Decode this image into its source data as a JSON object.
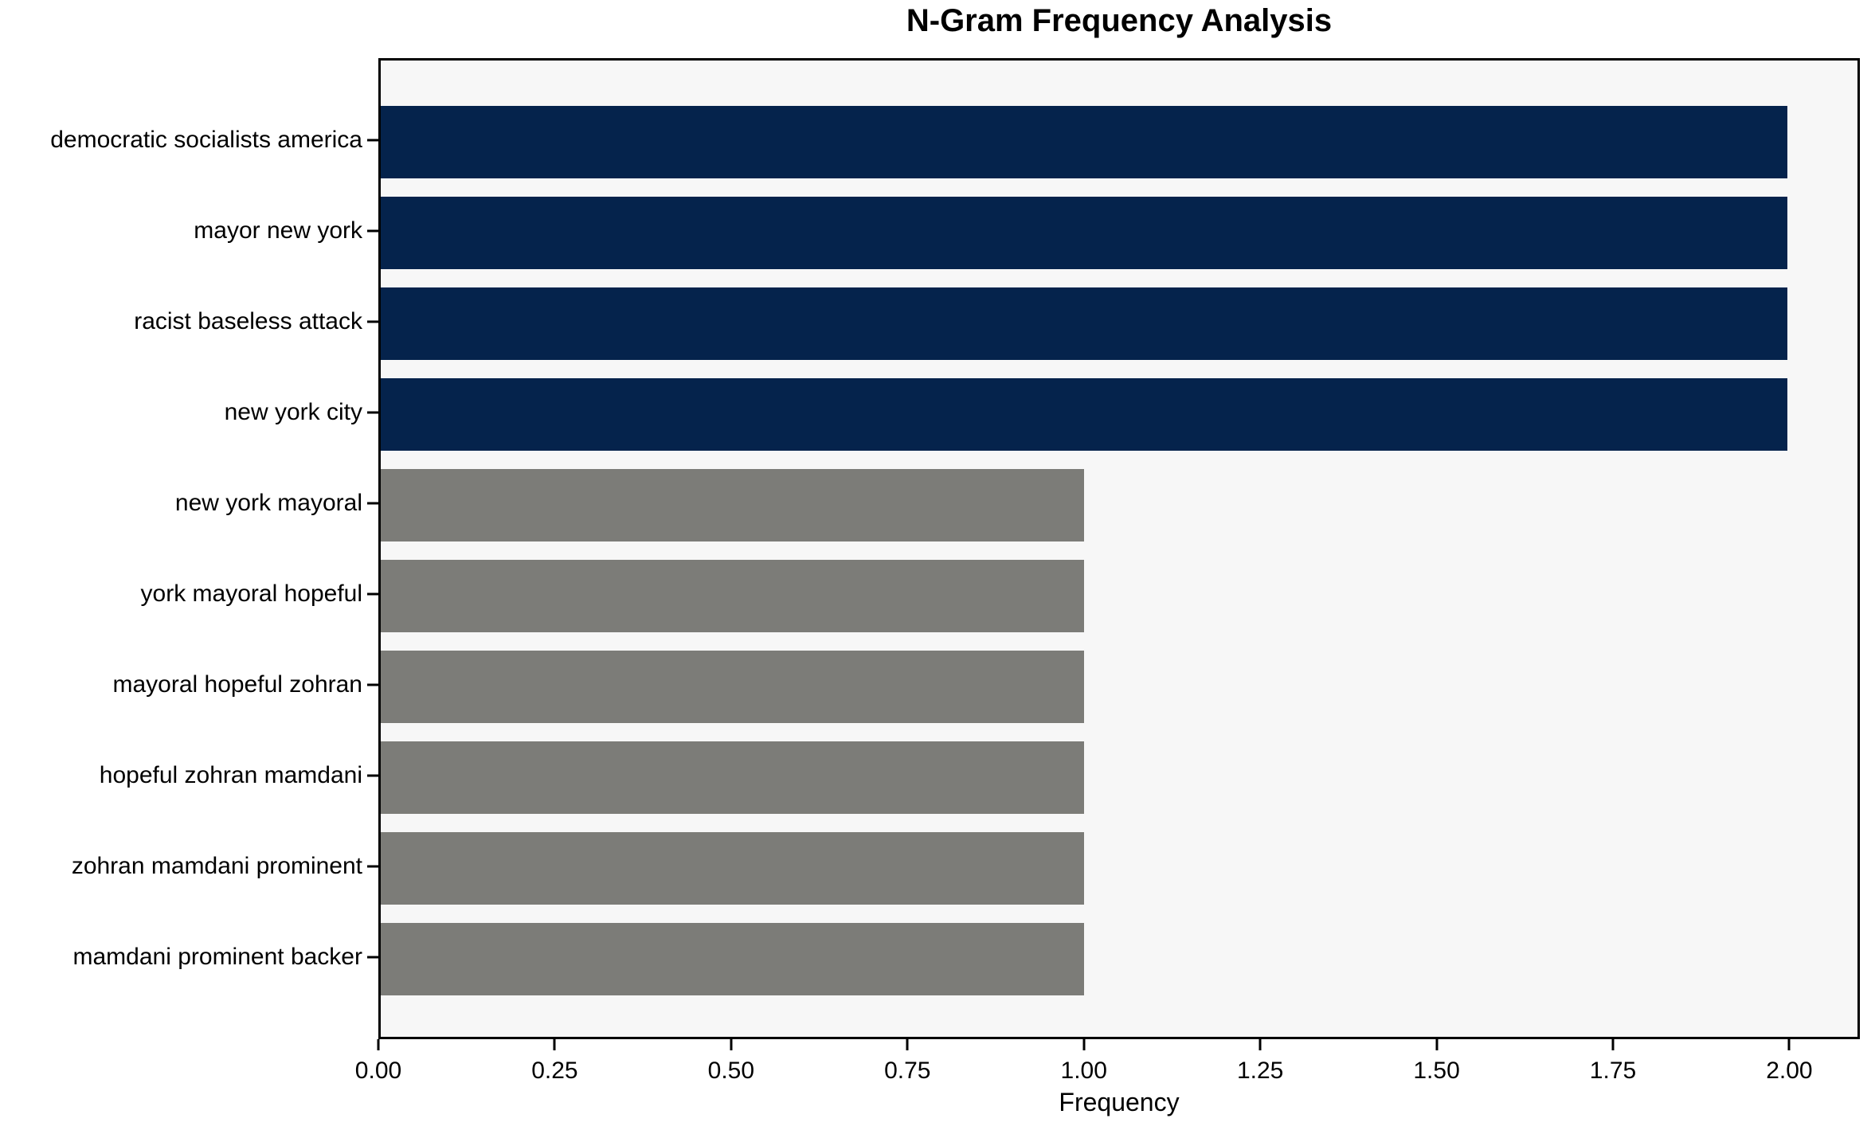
{
  "colors": {
    "high_bar": "#05234c",
    "low_bar": "#7c7c78",
    "plot_background": "#f7f7f7",
    "figure_background": "#ffffff",
    "spine": "#000000",
    "text": "#000000"
  },
  "chart_data": {
    "type": "bar",
    "orientation": "horizontal",
    "title": "N-Gram Frequency Analysis",
    "xlabel": "Frequency",
    "ylabel": "",
    "categories": [
      "democratic socialists america",
      "mayor new york",
      "racist baseless attack",
      "new york city",
      "new york mayoral",
      "york mayoral hopeful",
      "mayoral hopeful zohran",
      "hopeful zohran mamdani",
      "zohran mamdani prominent",
      "mamdani prominent backer"
    ],
    "values": [
      2,
      2,
      2,
      2,
      1,
      1,
      1,
      1,
      1,
      1
    ],
    "bar_colors": [
      "#05234c",
      "#05234c",
      "#05234c",
      "#05234c",
      "#7c7c78",
      "#7c7c78",
      "#7c7c78",
      "#7c7c78",
      "#7c7c78",
      "#7c7c78"
    ],
    "xlim": [
      0,
      2.1
    ],
    "xticks": [
      {
        "value": 0.0,
        "label": "0.00"
      },
      {
        "value": 0.25,
        "label": "0.25"
      },
      {
        "value": 0.5,
        "label": "0.50"
      },
      {
        "value": 0.75,
        "label": "0.75"
      },
      {
        "value": 1.0,
        "label": "1.00"
      },
      {
        "value": 1.25,
        "label": "1.25"
      },
      {
        "value": 1.5,
        "label": "1.50"
      },
      {
        "value": 1.75,
        "label": "1.75"
      },
      {
        "value": 2.0,
        "label": "2.00"
      }
    ],
    "grid": false,
    "legend": false
  }
}
